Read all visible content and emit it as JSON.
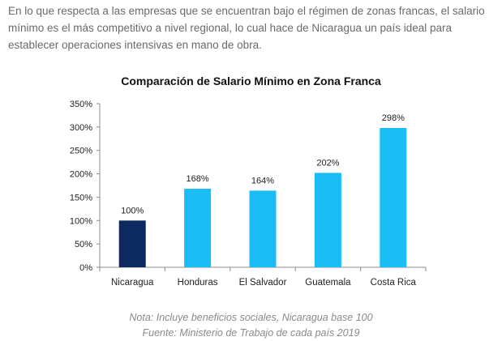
{
  "intro_text": "En lo que respecta a las empresas que se encuentran bajo el régimen de zonas francas, el salario mínimo es el más competitivo a nivel regional, lo cual hace de Nicaragua un país ideal para establecer operaciones intensivas en mano de obra.",
  "notes": {
    "line1": "Nota: Incluye beneficios sociales, Nicaragua base 100",
    "line2": "Fuente: Ministerio de Trabajo de cada país 2019"
  },
  "chart_data": {
    "type": "bar",
    "title": "Comparación de Salario Mínimo en Zona Franca",
    "xlabel": "",
    "ylabel": "",
    "categories": [
      "Nicaragua",
      "Honduras",
      "El Salvador",
      "Guatemala",
      "Costa Rica"
    ],
    "values": [
      100,
      168,
      164,
      202,
      298
    ],
    "data_labels": [
      "100%",
      "168%",
      "164%",
      "202%",
      "298%"
    ],
    "ylim": [
      0,
      350
    ],
    "yticks": [
      0,
      50,
      100,
      150,
      200,
      250,
      300,
      350
    ],
    "ytick_labels": [
      "0%",
      "50%",
      "100%",
      "150%",
      "200%",
      "250%",
      "300%",
      "350%"
    ],
    "grid": false,
    "colors": {
      "highlight": "#0c2a60",
      "default": "#1bbdf7",
      "axis": "#8c8c8c",
      "text": "#222222"
    }
  }
}
